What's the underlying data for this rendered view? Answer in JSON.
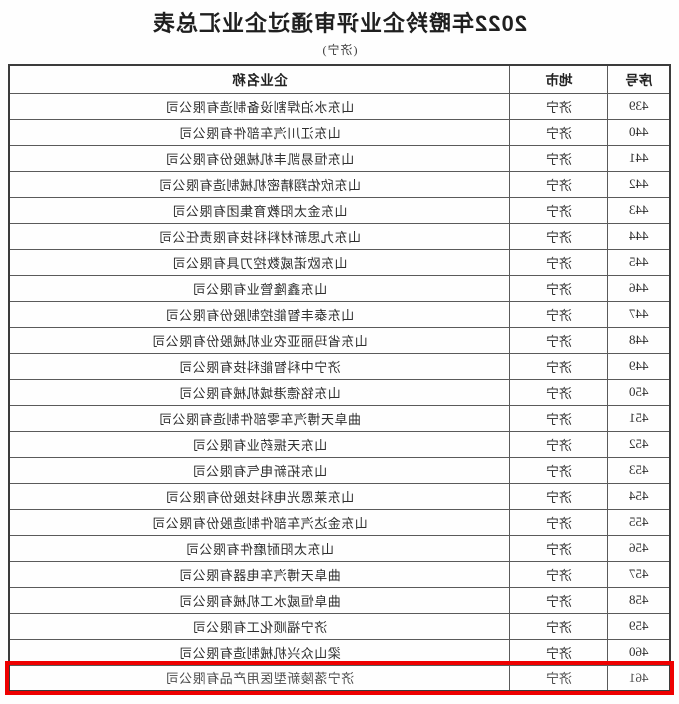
{
  "page": {
    "title": "2022年瞪羚企业评审通过企业汇总表",
    "subtitle": "(济宁)"
  },
  "table": {
    "headers": {
      "no": "序号",
      "city": "地市",
      "name": "企业名称"
    },
    "highlight_color": "#ee0000",
    "rows": [
      {
        "no": "439",
        "city": "济宁",
        "name": "山东水泊焊割设备制造有限公司",
        "highlighted": false
      },
      {
        "no": "440",
        "city": "济宁",
        "name": "山东江川汽车部件有限公司",
        "highlighted": false
      },
      {
        "no": "441",
        "city": "济宁",
        "name": "山东恒易凯丰机械股份有限公司",
        "highlighted": false
      },
      {
        "no": "442",
        "city": "济宁",
        "name": "山东欣佑翔精密机械制造有限公司",
        "highlighted": false
      },
      {
        "no": "443",
        "city": "济宁",
        "name": "山东金太阳教育集团有限公司",
        "highlighted": false
      },
      {
        "no": "444",
        "city": "济宁",
        "name": "山东九思新材料科技有限责任公司",
        "highlighted": false
      },
      {
        "no": "445",
        "city": "济宁",
        "name": "山东欧诺威数控刀具有限公司",
        "highlighted": false
      },
      {
        "no": "446",
        "city": "济宁",
        "name": "山东鑫隆管业有限公司",
        "highlighted": false
      },
      {
        "no": "447",
        "city": "济宁",
        "name": "山东泰丰智能控制股份有限公司",
        "highlighted": false
      },
      {
        "no": "448",
        "city": "济宁",
        "name": "山东省玛丽亚农业机械股份有限公司",
        "highlighted": false
      },
      {
        "no": "449",
        "city": "济宁",
        "name": "济宁中科智能科技有限公司",
        "highlighted": false
      },
      {
        "no": "450",
        "city": "济宁",
        "name": "山东铭德港城机械有限公司",
        "highlighted": false
      },
      {
        "no": "451",
        "city": "济宁",
        "name": "曲阜天博汽车零部件制造有限公司",
        "highlighted": false
      },
      {
        "no": "452",
        "city": "济宁",
        "name": "山东天振药业有限公司",
        "highlighted": false
      },
      {
        "no": "453",
        "city": "济宁",
        "name": "山东拓新电气有限公司",
        "highlighted": false
      },
      {
        "no": "454",
        "city": "济宁",
        "name": "山东莱恩光电科技股份有限公司",
        "highlighted": false
      },
      {
        "no": "455",
        "city": "济宁",
        "name": "山东金达汽车部件制造股份有限公司",
        "highlighted": false
      },
      {
        "no": "456",
        "city": "济宁",
        "name": "山东太阳耐磨件有限公司",
        "highlighted": false
      },
      {
        "no": "457",
        "city": "济宁",
        "name": "曲阜天博汽车电器有限公司",
        "highlighted": false
      },
      {
        "no": "458",
        "city": "济宁",
        "name": "曲阜恒威水工机械有限公司",
        "highlighted": false
      },
      {
        "no": "459",
        "city": "济宁",
        "name": "济宁福顺化工有限公司",
        "highlighted": false
      },
      {
        "no": "460",
        "city": "济宁",
        "name": "梁山众兴机械制造有限公司",
        "highlighted": false
      },
      {
        "no": "461",
        "city": "济宁",
        "name": "济宁落陵新型医用产品有限公司",
        "highlighted": true
      }
    ]
  }
}
